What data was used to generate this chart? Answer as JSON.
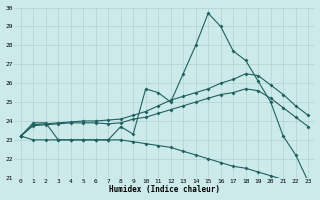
{
  "xlabel": "Humidex (Indice chaleur)",
  "background_color": "#cceaea",
  "grid_color": "#aacccc",
  "line_color": "#206060",
  "xlim": [
    -0.5,
    23.5
  ],
  "ylim": [
    21,
    30
  ],
  "xticks": [
    0,
    1,
    2,
    3,
    4,
    5,
    6,
    7,
    8,
    9,
    10,
    11,
    12,
    13,
    14,
    15,
    16,
    17,
    18,
    19,
    20,
    21,
    22,
    23
  ],
  "yticks": [
    21,
    22,
    23,
    24,
    25,
    26,
    27,
    28,
    29,
    30
  ],
  "series": {
    "max": [
      23.2,
      23.9,
      23.9,
      23.0,
      23.0,
      23.0,
      23.0,
      23.0,
      23.7,
      23.3,
      25.7,
      25.5,
      25.0,
      26.5,
      28.0,
      29.7,
      29.0,
      27.7,
      27.2,
      26.1,
      25.0,
      23.2,
      22.2,
      20.8
    ],
    "avg_high": [
      23.2,
      23.8,
      23.85,
      23.9,
      23.95,
      24.0,
      24.0,
      24.05,
      24.1,
      24.3,
      24.5,
      24.8,
      25.1,
      25.3,
      25.5,
      25.7,
      26.0,
      26.2,
      26.5,
      26.4,
      25.9,
      25.4,
      24.8,
      24.3
    ],
    "avg_low": [
      23.2,
      23.75,
      23.8,
      23.85,
      23.9,
      23.9,
      23.9,
      23.85,
      23.9,
      24.1,
      24.2,
      24.4,
      24.6,
      24.8,
      25.0,
      25.2,
      25.4,
      25.5,
      25.7,
      25.6,
      25.2,
      24.7,
      24.2,
      23.7
    ],
    "min": [
      23.2,
      23.0,
      23.0,
      23.0,
      23.0,
      23.0,
      23.0,
      23.0,
      23.0,
      22.9,
      22.8,
      22.7,
      22.6,
      22.4,
      22.2,
      22.0,
      21.8,
      21.6,
      21.5,
      21.3,
      21.1,
      20.9,
      20.8,
      20.7
    ]
  }
}
